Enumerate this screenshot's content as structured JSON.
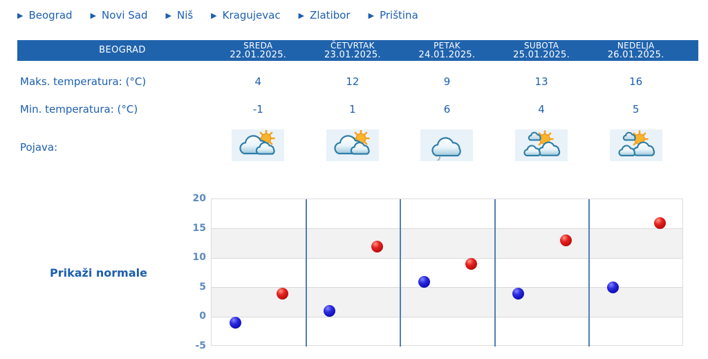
{
  "nav": {
    "items": [
      {
        "label": "Beograd"
      },
      {
        "label": "Novi Sad"
      },
      {
        "label": "Niš"
      },
      {
        "label": "Kragujevac"
      },
      {
        "label": "Zlatibor"
      },
      {
        "label": "Priština"
      }
    ]
  },
  "table": {
    "station": "BEOGRAD",
    "columns": [
      {
        "day": "SREDA",
        "date": "22.01.2025."
      },
      {
        "day": "ČETVRTAK",
        "date": "23.01.2025."
      },
      {
        "day": "PETAK",
        "date": "24.01.2025."
      },
      {
        "day": "SUBOTA",
        "date": "25.01.2025."
      },
      {
        "day": "NEDELJA",
        "date": "26.01.2025."
      }
    ],
    "rows": [
      {
        "label": "Maks. temperatura: (°C)",
        "values": [
          "4",
          "12",
          "9",
          "13",
          "16"
        ]
      },
      {
        "label": "Min. temperatura: (°C)",
        "values": [
          "-1",
          "1",
          "6",
          "4",
          "5"
        ]
      }
    ],
    "pojava": {
      "label": "Pojava:",
      "icons": [
        "partly-cloudy-sun-icon",
        "partly-cloudy-sun-icon",
        "cloud-drizzle-icon",
        "sun-behind-clouds-icon",
        "sun-behind-clouds-icon"
      ]
    }
  },
  "chart_link": {
    "label": "Prikaži normale"
  },
  "chart_data": {
    "type": "scatter",
    "categories": [
      "SREDA 22.01.2025.",
      "ČETVRTAK 23.01.2025.",
      "PETAK 24.01.2025.",
      "SUBOTA 25.01.2025.",
      "NEDELJA 26.01.2025."
    ],
    "series": [
      {
        "name": "Min. temperatura (°C)",
        "color": "#1111bb",
        "values": [
          -1,
          1,
          6,
          4,
          5
        ]
      },
      {
        "name": "Maks. temperatura (°C)",
        "color": "#c00d0d",
        "values": [
          4,
          12,
          9,
          13,
          16
        ]
      }
    ],
    "title": "",
    "xlabel": "",
    "ylabel": "",
    "ylim": [
      -5,
      20
    ],
    "yticks": [
      20,
      15,
      10,
      5,
      0,
      -5
    ],
    "grid": true,
    "band_fill": "#f2f2f2",
    "legend_position": "none"
  },
  "colors": {
    "header_bg": "#2063ad",
    "link_blue": "#1d5fae",
    "axis_label": "#5e8bbc",
    "separator": "#4d7fb2",
    "min_dot": "#1111bb",
    "max_dot": "#c00d0d"
  }
}
